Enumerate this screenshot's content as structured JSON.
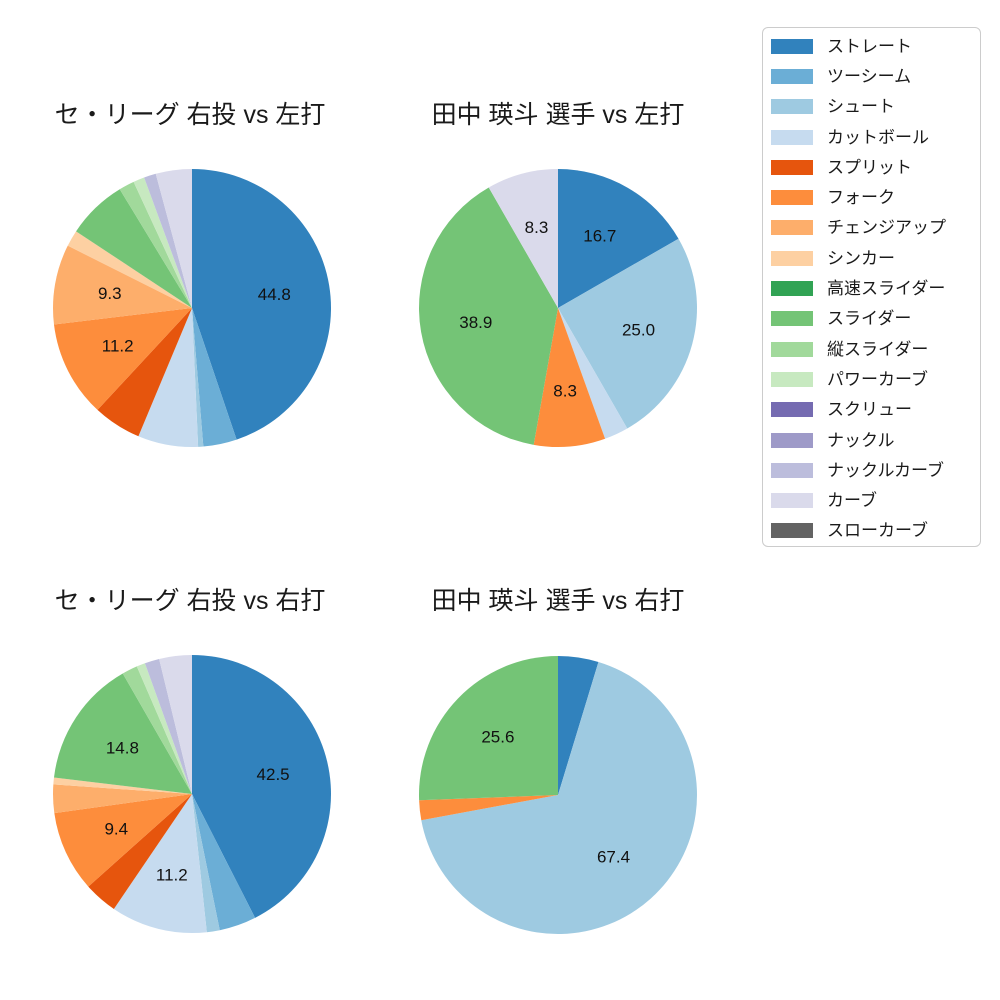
{
  "figure": {
    "background": "#ffffff",
    "text_color": "#1a1a1a"
  },
  "label_threshold": 8,
  "pct_distance": 0.6,
  "chart_data": [
    {
      "type": "pie",
      "title": "セ・リーグ 右投 vs 左打",
      "start_angle": "top",
      "direction": "clockwise",
      "slices": [
        {
          "key": "straight",
          "label": "ストレート",
          "value": 44.8,
          "color": "#3182bd"
        },
        {
          "key": "two-seam",
          "label": "ツーシーム",
          "value": 3.9,
          "color": "#6baed6"
        },
        {
          "key": "shoot",
          "label": "シュート",
          "value": 0.6,
          "color": "#9ecae1"
        },
        {
          "key": "cut-ball",
          "label": "カットボール",
          "value": 7.0,
          "color": "#c6dbef"
        },
        {
          "key": "split",
          "label": "スプリット",
          "value": 5.6,
          "color": "#e6550d"
        },
        {
          "key": "fork",
          "label": "フォーク",
          "value": 11.2,
          "color": "#fd8d3c"
        },
        {
          "key": "changeup",
          "label": "チェンジアップ",
          "value": 9.3,
          "color": "#fdae6b"
        },
        {
          "key": "sinker",
          "label": "シンカー",
          "value": 1.9,
          "color": "#fdd0a2"
        },
        {
          "key": "slider",
          "label": "スライダー",
          "value": 7.0,
          "color": "#74c476"
        },
        {
          "key": "vertical-slider",
          "label": "縦スライダー",
          "value": 1.8,
          "color": "#a1d99b"
        },
        {
          "key": "power-curve",
          "label": "パワーカーブ",
          "value": 1.3,
          "color": "#c7e9c0"
        },
        {
          "key": "knuckle-curve",
          "label": "ナックルカーブ",
          "value": 1.4,
          "color": "#bcbddc"
        },
        {
          "key": "curve",
          "label": "カーブ",
          "value": 4.2,
          "color": "#dadaeb"
        }
      ],
      "shown_value_labels": [
        "44.8",
        "11.2",
        "9.3"
      ]
    },
    {
      "type": "pie",
      "title": "田中 瑛斗 選手 vs 左打",
      "start_angle": "top",
      "direction": "clockwise",
      "slices": [
        {
          "key": "straight",
          "label": "ストレート",
          "value": 16.7,
          "color": "#3182bd"
        },
        {
          "key": "shoot",
          "label": "シュート",
          "value": 25.0,
          "color": "#9ecae1"
        },
        {
          "key": "cut-ball",
          "label": "カットボール",
          "value": 2.8,
          "color": "#c6dbef"
        },
        {
          "key": "fork",
          "label": "フォーク",
          "value": 8.3,
          "color": "#fd8d3c"
        },
        {
          "key": "slider",
          "label": "スライダー",
          "value": 38.9,
          "color": "#74c476"
        },
        {
          "key": "curve",
          "label": "カーブ",
          "value": 8.3,
          "color": "#dadaeb"
        }
      ],
      "shown_value_labels": [
        "16.7",
        "25.0",
        "8.3",
        "38.9",
        "8.3"
      ]
    },
    {
      "type": "pie",
      "title": "セ・リーグ 右投 vs 右打",
      "start_angle": "top",
      "direction": "clockwise",
      "slices": [
        {
          "key": "straight",
          "label": "ストレート",
          "value": 42.5,
          "color": "#3182bd"
        },
        {
          "key": "two-seam",
          "label": "ツーシーム",
          "value": 4.3,
          "color": "#6baed6"
        },
        {
          "key": "shoot",
          "label": "シュート",
          "value": 1.5,
          "color": "#9ecae1"
        },
        {
          "key": "cut-ball",
          "label": "カットボール",
          "value": 11.2,
          "color": "#c6dbef"
        },
        {
          "key": "split",
          "label": "スプリット",
          "value": 3.9,
          "color": "#e6550d"
        },
        {
          "key": "fork",
          "label": "フォーク",
          "value": 9.4,
          "color": "#fd8d3c"
        },
        {
          "key": "changeup",
          "label": "チェンジアップ",
          "value": 3.3,
          "color": "#fdae6b"
        },
        {
          "key": "sinker",
          "label": "シンカー",
          "value": 0.8,
          "color": "#fdd0a2"
        },
        {
          "key": "slider",
          "label": "スライダー",
          "value": 14.8,
          "color": "#74c476"
        },
        {
          "key": "vertical-slider",
          "label": "縦スライダー",
          "value": 1.8,
          "color": "#a1d99b"
        },
        {
          "key": "power-curve",
          "label": "パワーカーブ",
          "value": 1.0,
          "color": "#c7e9c0"
        },
        {
          "key": "knuckle-curve",
          "label": "ナックルカーブ",
          "value": 1.7,
          "color": "#bcbddc"
        },
        {
          "key": "curve",
          "label": "カーブ",
          "value": 3.8,
          "color": "#dadaeb"
        }
      ],
      "shown_value_labels": [
        "42.5",
        "11.2",
        "9.4",
        "14.8"
      ]
    },
    {
      "type": "pie",
      "title": "田中 瑛斗 選手 vs 右打",
      "start_angle": "top",
      "direction": "clockwise",
      "slices": [
        {
          "key": "straight",
          "label": "ストレート",
          "value": 4.7,
          "color": "#3182bd"
        },
        {
          "key": "shoot",
          "label": "シュート",
          "value": 67.4,
          "color": "#9ecae1"
        },
        {
          "key": "fork",
          "label": "フォーク",
          "value": 2.3,
          "color": "#fd8d3c"
        },
        {
          "key": "slider",
          "label": "スライダー",
          "value": 25.6,
          "color": "#74c476"
        }
      ],
      "shown_value_labels": [
        "67.4",
        "25.6"
      ]
    }
  ],
  "legend": {
    "position": "upper-right",
    "items": [
      {
        "key": "straight",
        "label": "ストレート",
        "color": "#3182bd"
      },
      {
        "key": "two-seam",
        "label": "ツーシーム",
        "color": "#6baed6"
      },
      {
        "key": "shoot",
        "label": "シュート",
        "color": "#9ecae1"
      },
      {
        "key": "cut-ball",
        "label": "カットボール",
        "color": "#c6dbef"
      },
      {
        "key": "split",
        "label": "スプリット",
        "color": "#e6550d"
      },
      {
        "key": "fork",
        "label": "フォーク",
        "color": "#fd8d3c"
      },
      {
        "key": "changeup",
        "label": "チェンジアップ",
        "color": "#fdae6b"
      },
      {
        "key": "sinker",
        "label": "シンカー",
        "color": "#fdd0a2"
      },
      {
        "key": "fast-slider",
        "label": "高速スライダー",
        "color": "#31a354"
      },
      {
        "key": "slider",
        "label": "スライダー",
        "color": "#74c476"
      },
      {
        "key": "vertical-slider",
        "label": "縦スライダー",
        "color": "#a1d99b"
      },
      {
        "key": "power-curve",
        "label": "パワーカーブ",
        "color": "#c7e9c0"
      },
      {
        "key": "screw",
        "label": "スクリュー",
        "color": "#756bb1"
      },
      {
        "key": "knuckle",
        "label": "ナックル",
        "color": "#9e9ac8"
      },
      {
        "key": "knuckle-curve",
        "label": "ナックルカーブ",
        "color": "#bcbddc"
      },
      {
        "key": "curve",
        "label": "カーブ",
        "color": "#dadaeb"
      },
      {
        "key": "slow-curve",
        "label": "スローカーブ",
        "color": "#636363"
      }
    ]
  }
}
